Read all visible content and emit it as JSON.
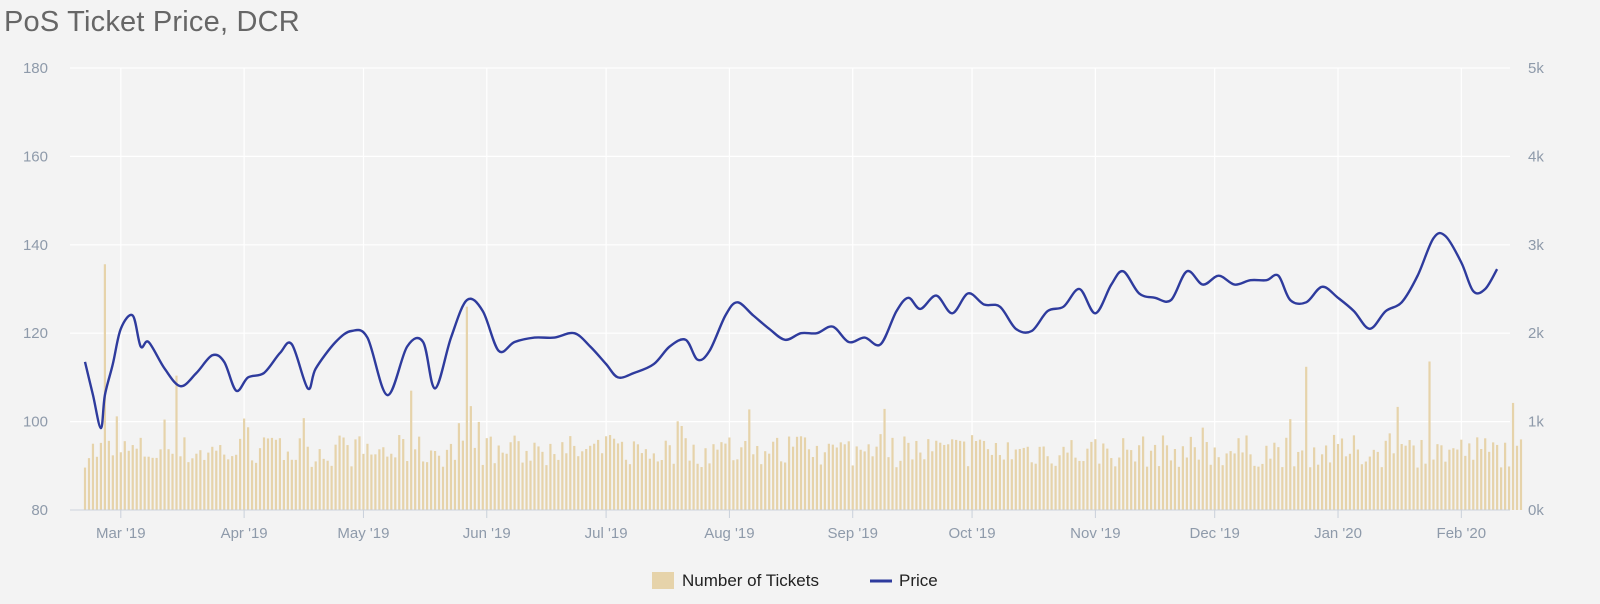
{
  "chart_data": {
    "type": "bar+line",
    "title": "PoS Ticket Price, DCR",
    "x_tick_labels": [
      "Mar '19",
      "Apr '19",
      "May '19",
      "Jun '19",
      "Jul '19",
      "Aug '19",
      "Sep '19",
      "Oct '19",
      "Nov '19",
      "Dec '19",
      "Jan '20",
      "Feb '20"
    ],
    "x_range": [
      "2019-02-20",
      "2020-02-16"
    ],
    "y_left": {
      "min": 80,
      "max": 180,
      "ticks": [
        80,
        100,
        120,
        140,
        160,
        180
      ]
    },
    "y_right": {
      "min": 0,
      "max": 5000,
      "ticks": [
        0,
        1000,
        2000,
        3000,
        4000,
        5000
      ],
      "tick_labels": [
        "0k",
        "1k",
        "2k",
        "3k",
        "4k",
        "5k"
      ]
    },
    "grid": true,
    "legend": {
      "placement": "bottom-center",
      "items": [
        "Number of Tickets",
        "Price"
      ]
    },
    "colors": {
      "tickets": "#e6d3aa",
      "price": "#2e3b9d",
      "grid": "#ffffff",
      "axis_text": "#8e9aaa",
      "background": "#f3f3f3"
    },
    "series": [
      {
        "name": "Price",
        "axis": "left",
        "type": "line",
        "points": [
          [
            "2019-02-20",
            113.5
          ],
          [
            "2019-02-22",
            106
          ],
          [
            "2019-02-24",
            98.5
          ],
          [
            "2019-02-25",
            106
          ],
          [
            "2019-02-27",
            113
          ],
          [
            "2019-03-01",
            121
          ],
          [
            "2019-03-04",
            124
          ],
          [
            "2019-03-06",
            117
          ],
          [
            "2019-03-08",
            118
          ],
          [
            "2019-03-12",
            112
          ],
          [
            "2019-03-16",
            108
          ],
          [
            "2019-03-20",
            111
          ],
          [
            "2019-03-24",
            115
          ],
          [
            "2019-03-27",
            113.5
          ],
          [
            "2019-03-30",
            107
          ],
          [
            "2019-04-02",
            110
          ],
          [
            "2019-04-06",
            111
          ],
          [
            "2019-04-10",
            115.5
          ],
          [
            "2019-04-13",
            117.5
          ],
          [
            "2019-04-17",
            107.5
          ],
          [
            "2019-04-19",
            112
          ],
          [
            "2019-04-24",
            118
          ],
          [
            "2019-04-28",
            120.5
          ],
          [
            "2019-05-02",
            119
          ],
          [
            "2019-05-07",
            106
          ],
          [
            "2019-05-12",
            117
          ],
          [
            "2019-05-16",
            118
          ],
          [
            "2019-05-19",
            107.5
          ],
          [
            "2019-05-23",
            119
          ],
          [
            "2019-05-27",
            127.5
          ],
          [
            "2019-05-31",
            125
          ],
          [
            "2019-06-04",
            116
          ],
          [
            "2019-06-08",
            118
          ],
          [
            "2019-06-13",
            119
          ],
          [
            "2019-06-18",
            119
          ],
          [
            "2019-06-23",
            120
          ],
          [
            "2019-06-27",
            117
          ],
          [
            "2019-07-01",
            113
          ],
          [
            "2019-07-04",
            110
          ],
          [
            "2019-07-08",
            111
          ],
          [
            "2019-07-13",
            113
          ],
          [
            "2019-07-17",
            117
          ],
          [
            "2019-07-21",
            118.5
          ],
          [
            "2019-07-24",
            114
          ],
          [
            "2019-07-27",
            116
          ],
          [
            "2019-07-31",
            124
          ],
          [
            "2019-08-03",
            127
          ],
          [
            "2019-08-07",
            124
          ],
          [
            "2019-08-11",
            121
          ],
          [
            "2019-08-15",
            118.5
          ],
          [
            "2019-08-19",
            120
          ],
          [
            "2019-08-23",
            120
          ],
          [
            "2019-08-27",
            121.5
          ],
          [
            "2019-08-31",
            118
          ],
          [
            "2019-09-04",
            119
          ],
          [
            "2019-09-08",
            117.5
          ],
          [
            "2019-09-12",
            125
          ],
          [
            "2019-09-15",
            128
          ],
          [
            "2019-09-18",
            125.5
          ],
          [
            "2019-09-22",
            128.5
          ],
          [
            "2019-09-26",
            124.5
          ],
          [
            "2019-09-30",
            129
          ],
          [
            "2019-10-04",
            126.5
          ],
          [
            "2019-10-08",
            126
          ],
          [
            "2019-10-12",
            121
          ],
          [
            "2019-10-16",
            120.5
          ],
          [
            "2019-10-20",
            125
          ],
          [
            "2019-10-24",
            126
          ],
          [
            "2019-10-28",
            130
          ],
          [
            "2019-11-01",
            124.5
          ],
          [
            "2019-11-05",
            131
          ],
          [
            "2019-11-08",
            134
          ],
          [
            "2019-11-12",
            129
          ],
          [
            "2019-11-16",
            128
          ],
          [
            "2019-11-20",
            127.5
          ],
          [
            "2019-11-24",
            134
          ],
          [
            "2019-11-28",
            131
          ],
          [
            "2019-12-02",
            133
          ],
          [
            "2019-12-06",
            131
          ],
          [
            "2019-12-10",
            132
          ],
          [
            "2019-12-14",
            132
          ],
          [
            "2019-12-17",
            133
          ],
          [
            "2019-12-20",
            127.5
          ],
          [
            "2019-12-24",
            127
          ],
          [
            "2019-12-28",
            130.5
          ],
          [
            "2020-01-01",
            128
          ],
          [
            "2020-01-05",
            125
          ],
          [
            "2020-01-09",
            121
          ],
          [
            "2020-01-13",
            125
          ],
          [
            "2020-01-17",
            127
          ],
          [
            "2020-01-21",
            133
          ],
          [
            "2020-01-25",
            141.5
          ],
          [
            "2020-01-28",
            142
          ],
          [
            "2020-02-01",
            136
          ],
          [
            "2020-02-04",
            129.5
          ],
          [
            "2020-02-07",
            130
          ],
          [
            "2020-02-10",
            134.5
          ]
        ]
      },
      {
        "name": "Number of Tickets",
        "axis": "right",
        "type": "bar",
        "approx_mean": 690,
        "approx_range": [
          480,
          850
        ],
        "notable_spikes": [
          [
            "2019-02-25",
            2780
          ],
          [
            "2019-03-15",
            1520
          ],
          [
            "2019-05-13",
            1350
          ],
          [
            "2019-05-27",
            2300
          ],
          [
            "2019-12-24",
            1620
          ],
          [
            "2020-01-24",
            1680
          ]
        ]
      }
    ]
  }
}
